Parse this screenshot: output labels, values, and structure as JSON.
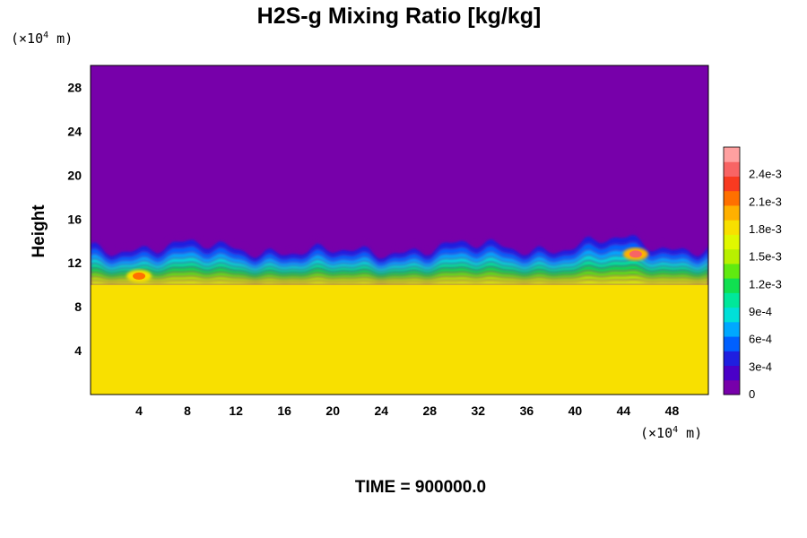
{
  "chart_data": {
    "type": "heatmap",
    "title": "H2S-g Mixing Ratio [kg/kg]",
    "ylabel": "Height",
    "x_unit": {
      "prefix": "(×10",
      "exp": "4",
      "suffix": " m)"
    },
    "y_unit": {
      "prefix": "(×10",
      "exp": "4",
      "suffix": " m)"
    },
    "xlim": [
      0,
      51
    ],
    "ylim": [
      0,
      30
    ],
    "x_ticks": [
      4,
      8,
      12,
      16,
      20,
      24,
      28,
      32,
      36,
      40,
      44,
      48
    ],
    "y_ticks": [
      4,
      8,
      12,
      16,
      20,
      24,
      28
    ],
    "colorbar": {
      "range": [
        0,
        0.0027
      ],
      "tick_labels": [
        "0",
        "3e-4",
        "6e-4",
        "9e-4",
        "1.2e-3",
        "1.5e-3",
        "1.8e-3",
        "2.1e-3",
        "2.4e-3"
      ],
      "tick_values": [
        0,
        0.0003,
        0.0006,
        0.0009,
        0.0012,
        0.0015,
        0.0018,
        0.0021,
        0.0024
      ],
      "colors": [
        "#7700aa",
        "#4a00c8",
        "#1f1fe0",
        "#0060ff",
        "#00a8ff",
        "#00e0d8",
        "#00e89a",
        "#10e050",
        "#60ea10",
        "#b8f000",
        "#e0f800",
        "#f8e000",
        "#ffb000",
        "#ff7000",
        "#f83a20",
        "#f86464",
        "#ffa0a0"
      ]
    },
    "field_summary": {
      "lower_layer": {
        "y_top": 10,
        "value": 0.00185
      },
      "transition_layer": {
        "y_bottom": 10,
        "y_top": 13.5,
        "value_range": [
          0.0003,
          0.0018
        ]
      },
      "upper_layer": {
        "y_bottom": 13.5,
        "value": 0
      },
      "hot_spots": [
        {
          "x": 4,
          "y": 10.8,
          "value": 0.0022
        },
        {
          "x": 45,
          "y": 12.8,
          "value": 0.0024
        }
      ]
    }
  },
  "footer": {
    "time_label": "TIME = 900000.0"
  }
}
